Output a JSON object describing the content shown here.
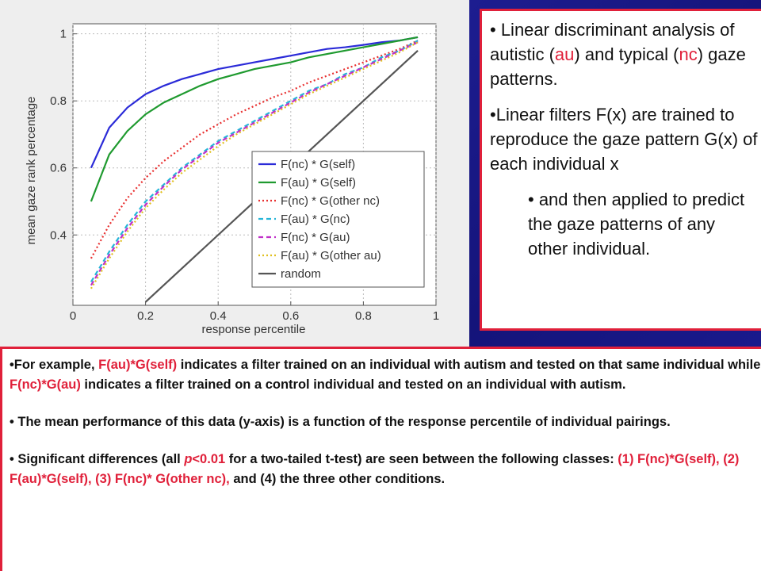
{
  "chart_data": {
    "type": "line",
    "xlabel": "response percentile",
    "ylabel": "mean gaze rank percentage",
    "xlim": [
      0,
      1
    ],
    "ylim": [
      0.19,
      1.03
    ],
    "xticks": [
      0,
      0.2,
      0.4,
      0.6,
      0.8,
      1
    ],
    "yticks": [
      0.4,
      0.6,
      0.8,
      1
    ],
    "grid": true,
    "legend": "lower right",
    "x": [
      0.05,
      0.1,
      0.15,
      0.2,
      0.25,
      0.3,
      0.35,
      0.4,
      0.45,
      0.5,
      0.55,
      0.6,
      0.65,
      0.7,
      0.75,
      0.8,
      0.85,
      0.9,
      0.95
    ],
    "series": [
      {
        "name": "F(nc) * G(self)",
        "color": "#2b2bd8",
        "style": "solid",
        "values": [
          0.6,
          0.72,
          0.78,
          0.82,
          0.845,
          0.865,
          0.88,
          0.895,
          0.905,
          0.915,
          0.925,
          0.935,
          0.945,
          0.955,
          0.96,
          0.967,
          0.975,
          0.98,
          0.99
        ]
      },
      {
        "name": "F(au) * G(self)",
        "color": "#1f9a2f",
        "style": "solid",
        "values": [
          0.5,
          0.64,
          0.71,
          0.76,
          0.795,
          0.82,
          0.845,
          0.865,
          0.88,
          0.895,
          0.905,
          0.915,
          0.93,
          0.94,
          0.95,
          0.96,
          0.97,
          0.98,
          0.99
        ]
      },
      {
        "name": "F(nc) * G(other nc)",
        "color": "#e83030",
        "style": "dotted",
        "values": [
          0.33,
          0.43,
          0.51,
          0.57,
          0.62,
          0.66,
          0.7,
          0.73,
          0.76,
          0.785,
          0.81,
          0.83,
          0.855,
          0.875,
          0.895,
          0.915,
          0.935,
          0.955,
          0.98
        ]
      },
      {
        "name": "F(au) * G(nc)",
        "color": "#25b5d8",
        "style": "dashed",
        "values": [
          0.26,
          0.35,
          0.43,
          0.5,
          0.55,
          0.6,
          0.64,
          0.68,
          0.71,
          0.74,
          0.77,
          0.8,
          0.83,
          0.85,
          0.88,
          0.9,
          0.93,
          0.95,
          0.98
        ]
      },
      {
        "name": "F(nc) * G(au)",
        "color": "#c030c8",
        "style": "dashed",
        "values": [
          0.25,
          0.34,
          0.42,
          0.49,
          0.545,
          0.595,
          0.635,
          0.675,
          0.705,
          0.735,
          0.765,
          0.795,
          0.825,
          0.85,
          0.875,
          0.9,
          0.925,
          0.95,
          0.975
        ]
      },
      {
        "name": "F(au) * G(other au)",
        "color": "#e0c020",
        "style": "dotted",
        "values": [
          0.24,
          0.33,
          0.41,
          0.48,
          0.535,
          0.585,
          0.625,
          0.665,
          0.7,
          0.73,
          0.76,
          0.79,
          0.82,
          0.845,
          0.87,
          0.895,
          0.92,
          0.945,
          0.975
        ]
      },
      {
        "name": "random",
        "color": "#555555",
        "style": "solid",
        "x": [
          0.2,
          0.95
        ],
        "values": [
          0.2,
          0.95
        ]
      }
    ]
  },
  "side_box": {
    "bullets": [
      {
        "level": 1,
        "parts": [
          "• Linear discriminant analysis of autistic (",
          {
            "text": "au",
            "style": "red"
          },
          ") and typical (",
          {
            "text": "nc",
            "style": "red"
          },
          ") gaze patterns."
        ]
      },
      {
        "level": 1,
        "parts": [
          "•Linear filters F(x) are trained to reproduce the gaze pattern G(x) of each individual x"
        ]
      },
      {
        "level": 2,
        "parts": [
          "• and then applied to predict the gaze patterns of any other individual."
        ]
      }
    ]
  },
  "bottom_box": {
    "bullets": [
      {
        "parts": [
          "•For example, ",
          {
            "text": "F(au)*G(self)",
            "style": "red"
          },
          " indicates a filter trained on an individual with autism and tested on that same individual while ",
          {
            "text": "F(nc)*G(au)",
            "style": "red"
          },
          " indicates a filter trained on a control individual and tested on an individual with autism."
        ]
      },
      {
        "parts": [
          "• The mean performance of this data (y-axis) is a function of the response percentile of individual pairings."
        ]
      },
      {
        "parts": [
          "• Significant differences (all ",
          {
            "text": "p",
            "style": "red-italic"
          },
          {
            "text": "<0.01",
            "style": "red"
          },
          " for a two-tailed t-test) are seen between the following classes: ",
          {
            "text": "(1) F(nc)*G(self), (2) F(au)*G(self), (3) F(nc)* G(other nc),",
            "style": "red"
          },
          " and (4) the three other conditions."
        ]
      }
    ]
  }
}
